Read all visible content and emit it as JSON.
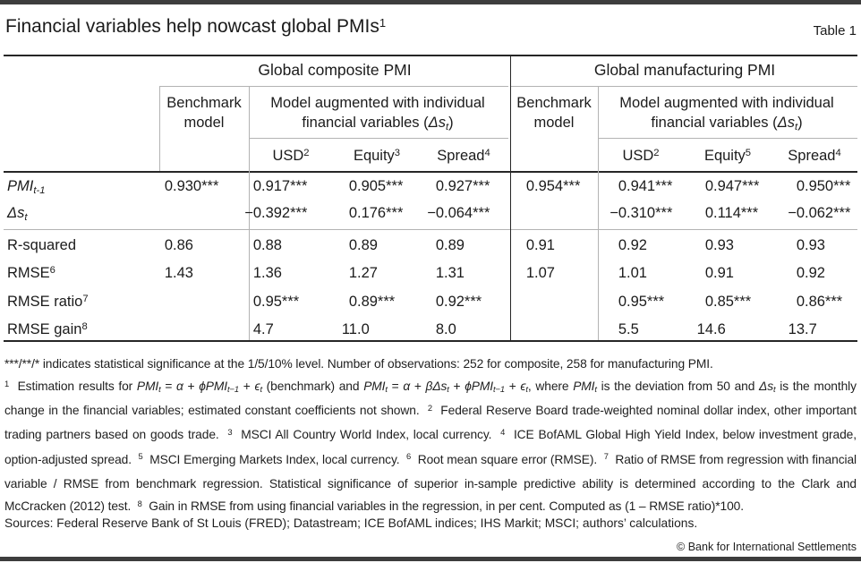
{
  "header": {
    "title": "Financial variables help nowcast global PMIs",
    "title_sup": "1",
    "table_label": "Table 1"
  },
  "table": {
    "group_headers": [
      "Global composite PMI",
      "Global manufacturing PMI"
    ],
    "benchmark_label": "Benchmark model",
    "augmented_label": [
      {
        "t": "Model augmented with individual financial variables ("
      },
      {
        "t": "Δs",
        "i": true
      },
      {
        "t": "t",
        "i": true,
        "sub": true
      },
      {
        "t": ")"
      }
    ],
    "sub_headers": [
      [
        {
          "t": "USD"
        },
        {
          "t": "2",
          "sup": true
        }
      ],
      [
        {
          "t": "Equity"
        },
        {
          "t": "3",
          "sup": true
        }
      ],
      [
        {
          "t": "Spread"
        },
        {
          "t": "4",
          "sup": true
        }
      ],
      [
        {
          "t": "USD"
        },
        {
          "t": "2",
          "sup": true
        }
      ],
      [
        {
          "t": "Equity"
        },
        {
          "t": "5",
          "sup": true
        }
      ],
      [
        {
          "t": "Spread"
        },
        {
          "t": "4",
          "sup": true
        }
      ]
    ],
    "rows": [
      {
        "label": [
          {
            "t": "PMI",
            "i": true
          },
          {
            "t": "t-1",
            "i": true,
            "sub": true
          }
        ],
        "cells": [
          "0.930***",
          "0.917***",
          "0.905***",
          "0.927***",
          "0.954***",
          "0.941***",
          "0.947***",
          "0.950***"
        ]
      },
      {
        "label": [
          {
            "t": "Δs",
            "i": true
          },
          {
            "t": "t",
            "i": true,
            "sub": true
          }
        ],
        "cells": [
          "",
          "−0.392***",
          "0.176***",
          "−0.064***",
          "",
          "−0.310***",
          "0.114***",
          "−0.062***"
        ]
      },
      {
        "label": [
          {
            "t": "R-squared"
          }
        ],
        "cells": [
          "0.86",
          "0.88",
          "0.89",
          "0.89",
          "0.91",
          "0.92",
          "0.93",
          "0.93"
        ]
      },
      {
        "label": [
          {
            "t": "RMSE"
          },
          {
            "t": "6",
            "sup": true
          }
        ],
        "cells": [
          "1.43",
          "1.36",
          "1.27",
          "1.31",
          "1.07",
          "1.01",
          "0.91",
          "0.92"
        ]
      },
      {
        "label": [
          {
            "t": "RMSE ratio"
          },
          {
            "t": "7",
            "sup": true
          }
        ],
        "cells": [
          "",
          "0.95***",
          "0.89***",
          "0.92***",
          "",
          "0.95***",
          "0.85***",
          "0.86***"
        ]
      },
      {
        "label": [
          {
            "t": "RMSE gain"
          },
          {
            "t": "8",
            "sup": true
          }
        ],
        "cells": [
          "",
          "4.7",
          "11.0",
          "8.0",
          "",
          "5.5",
          "14.6",
          "13.7"
        ]
      }
    ]
  },
  "footnotes": {
    "significance": "***/**/* indicates statistical significance at the 1/5/10% level. Number of observations: 252 for composite, 258 for manufacturing PMI.",
    "notes": [
      {
        "t": "1",
        "sup": true
      },
      {
        "t": "  Estimation results for "
      },
      {
        "t": "PMI",
        "i": true
      },
      {
        "t": "t",
        "i": true,
        "sub": true
      },
      {
        "t": " = "
      },
      {
        "t": "α",
        "i": true
      },
      {
        "t": " + "
      },
      {
        "t": "ϕPMI",
        "i": true
      },
      {
        "t": "t−1",
        "i": true,
        "sub": true
      },
      {
        "t": " + "
      },
      {
        "t": "ϵ",
        "i": true
      },
      {
        "t": "t",
        "i": true,
        "sub": true
      },
      {
        "t": " (benchmark) and "
      },
      {
        "t": "PMI",
        "i": true
      },
      {
        "t": "t",
        "i": true,
        "sub": true
      },
      {
        "t": " = "
      },
      {
        "t": "α",
        "i": true
      },
      {
        "t": " + "
      },
      {
        "t": "βΔs",
        "i": true
      },
      {
        "t": "t",
        "i": true,
        "sub": true
      },
      {
        "t": " + "
      },
      {
        "t": "ϕPMI",
        "i": true
      },
      {
        "t": "t−1",
        "i": true,
        "sub": true
      },
      {
        "t": " + "
      },
      {
        "t": "ϵ",
        "i": true
      },
      {
        "t": "t",
        "i": true,
        "sub": true
      },
      {
        "t": ", where "
      },
      {
        "t": "PMI",
        "i": true
      },
      {
        "t": "t",
        "i": true,
        "sub": true
      },
      {
        "t": " is the deviation from 50 and "
      },
      {
        "t": "Δs",
        "i": true
      },
      {
        "t": "t",
        "i": true,
        "sub": true
      },
      {
        "t": " is the monthly change in the financial variables; estimated constant coefficients not shown."
      },
      {
        "t": "  "
      },
      {
        "t": "2",
        "sup": true
      },
      {
        "t": "  Federal Reserve Board trade-weighted nominal dollar index, other important trading partners based on goods trade."
      },
      {
        "t": "  "
      },
      {
        "t": "3",
        "sup": true
      },
      {
        "t": "  MSCI All Country World Index, local currency."
      },
      {
        "t": "  "
      },
      {
        "t": "4",
        "sup": true
      },
      {
        "t": "  ICE BofAML Global High Yield Index, below investment grade, option-adjusted spread."
      },
      {
        "t": "  "
      },
      {
        "t": "5",
        "sup": true
      },
      {
        "t": "  MSCI Emerging Markets Index, local currency."
      },
      {
        "t": "  "
      },
      {
        "t": "6",
        "sup": true
      },
      {
        "t": "  Root mean square error (RMSE)."
      },
      {
        "t": "  "
      },
      {
        "t": "7",
        "sup": true
      },
      {
        "t": "  Ratio of RMSE from regression with financial variable / RMSE from benchmark regression. Statistical significance of superior in-sample predictive ability is determined according to the Clark and McCracken (2012) test."
      },
      {
        "t": "  "
      },
      {
        "t": "8",
        "sup": true
      },
      {
        "t": "  Gain in RMSE from using financial variables in the regression, in per cent. Computed as (1 – RMSE ratio)*100."
      }
    ],
    "sources": "Sources: Federal Reserve Bank of St Louis (FRED); Datastream; ICE BofAML indices; IHS Markit; MSCI; authors’ calculations.",
    "copyright": "© Bank for International Settlements"
  }
}
